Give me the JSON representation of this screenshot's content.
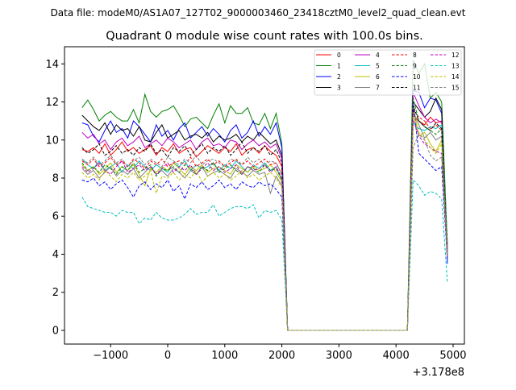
{
  "chart_data": {
    "type": "line",
    "suptitle": "Data file: modeM0/AS1A07_127T02_9000003460_23418cztM0_level2_quad_clean.evt",
    "title": "Quadrant 0 module wise count rates with 100.0s bins.",
    "xlabel": "",
    "ylabel": "",
    "x_offset_label": "+3.178e8",
    "xlim": [
      -1808,
      5198
    ],
    "ylim": [
      -0.72,
      14.9
    ],
    "xticks": [
      -1000,
      0,
      1000,
      2000,
      3000,
      4000,
      5000
    ],
    "xtick_labels": [
      "−1000",
      "0",
      "1000",
      "2000",
      "3000",
      "4000",
      "5000"
    ],
    "yticks": [
      0,
      2,
      4,
      6,
      8,
      10,
      12,
      14
    ],
    "ytick_labels": [
      "0",
      "2",
      "4",
      "6",
      "8",
      "10",
      "12",
      "14"
    ],
    "grid": false,
    "legend_placement": "top-right",
    "bin_size": 100,
    "x_start": -1500,
    "zero_gap_x": [
      2100,
      4200
    ],
    "after_start": 4300,
    "series": [
      {
        "name": "0",
        "color": "#ff0000",
        "dashed": false,
        "before": [
          9.5,
          9.4,
          9.6,
          9.3,
          9.8,
          9.2,
          9.5,
          9.9,
          9.4,
          9.6,
          9.3,
          9.5,
          9.7,
          9.2,
          9.6,
          9.4,
          9.8,
          9.3,
          9.5,
          9.6,
          9.1,
          9.4,
          9.7,
          9.5,
          9.3,
          9.6,
          9.4,
          9.8,
          9.2,
          9.5,
          9.6,
          9.3,
          9.7,
          9.4,
          9.2,
          8.6
        ],
        "after": [
          11.3,
          11.0,
          10.8,
          11.2,
          10.9,
          11.0,
          4.2
        ]
      },
      {
        "name": "1",
        "color": "#008000",
        "dashed": false,
        "before": [
          11.7,
          12.1,
          11.6,
          11.0,
          11.3,
          11.5,
          11.2,
          11.0,
          11.0,
          11.6,
          10.9,
          12.4,
          11.5,
          11.2,
          11.5,
          11.6,
          11.8,
          11.3,
          10.7,
          11.1,
          11.2,
          10.9,
          10.6,
          11.3,
          11.9,
          10.9,
          11.8,
          11.4,
          11.4,
          11.7,
          10.9,
          10.8,
          11.4,
          10.6,
          11.4,
          9.8
        ],
        "after": [
          14.2,
          13.5,
          14.0,
          12.2,
          12.5,
          12.0,
          4.5
        ]
      },
      {
        "name": "2",
        "color": "#0000ff",
        "dashed": false,
        "before": [
          10.9,
          10.8,
          10.2,
          9.9,
          10.5,
          11.0,
          10.4,
          10.6,
          10.1,
          11.0,
          10.7,
          10.3,
          9.9,
          10.8,
          10.2,
          10.5,
          10.0,
          10.6,
          10.9,
          10.1,
          10.4,
          10.7,
          10.2,
          10.6,
          10.3,
          9.9,
          10.5,
          10.8,
          10.1,
          10.4,
          11.0,
          10.2,
          10.7,
          10.3,
          10.9,
          9.6
        ],
        "after": [
          12.6,
          12.5,
          11.7,
          12.2,
          12.1,
          11.4,
          3.5
        ]
      },
      {
        "name": "3",
        "color": "#000000",
        "dashed": false,
        "before": [
          11.3,
          11.0,
          10.7,
          10.5,
          10.9,
          10.3,
          10.8,
          10.5,
          10.6,
          10.2,
          10.7,
          10.0,
          9.9,
          10.4,
          10.8,
          10.1,
          10.3,
          10.5,
          10.0,
          10.2,
          10.3,
          10.1,
          10.4,
          9.9,
          10.2,
          10.0,
          10.1,
          10.3,
          9.9,
          10.2,
          10.0,
          10.4,
          10.1,
          9.8,
          10.0,
          9.2
        ],
        "after": [
          12.0,
          11.6,
          11.2,
          11.5,
          12.2,
          11.6,
          4.0
        ]
      },
      {
        "name": "4",
        "color": "#bf00bf",
        "dashed": false,
        "before": [
          10.4,
          10.1,
          10.3,
          9.8,
          10.0,
          9.5,
          9.9,
          10.1,
          9.7,
          9.9,
          10.2,
          9.6,
          9.8,
          10.0,
          9.7,
          10.1,
          9.9,
          9.6,
          9.8,
          10.0,
          9.5,
          9.9,
          10.1,
          9.7,
          9.8,
          9.6,
          10.0,
          9.9,
          9.5,
          9.8,
          10.0,
          9.7,
          9.9,
          9.6,
          9.8,
          9.0
        ],
        "after": [
          12.5,
          11.8,
          11.2,
          10.9,
          11.1,
          10.9,
          4.3
        ]
      },
      {
        "name": "5",
        "color": "#00bfbf",
        "dashed": false,
        "before": [
          9.0,
          8.7,
          8.5,
          8.9,
          8.4,
          8.6,
          8.8,
          8.3,
          8.7,
          8.5,
          8.9,
          8.6,
          8.4,
          8.7,
          8.5,
          8.3,
          8.8,
          8.6,
          8.9,
          8.4,
          8.7,
          8.5,
          8.6,
          8.8,
          8.4,
          8.7,
          8.5,
          8.9,
          8.6,
          8.3,
          8.7,
          8.5,
          8.8,
          8.4,
          8.6,
          7.9
        ],
        "after": [
          10.9,
          10.6,
          10.5,
          10.7,
          10.6,
          10.8,
          4.6
        ]
      },
      {
        "name": "6",
        "color": "#bfbf00",
        "dashed": false,
        "before": [
          8.7,
          8.4,
          8.6,
          8.2,
          8.5,
          8.8,
          8.3,
          8.6,
          8.4,
          8.7,
          8.2,
          7.6,
          8.5,
          8.3,
          8.6,
          8.4,
          8.8,
          8.5,
          8.2,
          8.6,
          8.4,
          8.7,
          8.3,
          8.5,
          8.6,
          8.4,
          8.2,
          8.7,
          8.5,
          8.3,
          8.6,
          8.4,
          8.5,
          8.7,
          8.3,
          7.8
        ],
        "after": [
          11.8,
          10.2,
          10.4,
          9.8,
          9.4,
          10.0,
          4.1
        ]
      },
      {
        "name": "7",
        "color": "#808080",
        "dashed": false,
        "before": [
          8.5,
          8.2,
          8.4,
          8.0,
          8.3,
          8.6,
          8.1,
          8.4,
          8.2,
          8.5,
          8.0,
          8.3,
          8.6,
          8.2,
          8.4,
          8.1,
          8.5,
          8.3,
          8.0,
          8.4,
          8.2,
          8.6,
          8.1,
          8.3,
          8.4,
          8.2,
          8.0,
          8.5,
          8.3,
          8.1,
          8.4,
          8.2,
          8.3,
          7.2,
          8.1,
          7.6
        ],
        "after": [
          11.5,
          10.8,
          10.1,
          10.4,
          10.0,
          10.2,
          3.9
        ]
      },
      {
        "name": "8",
        "color": "#ff0000",
        "dashed": true,
        "before": [
          8.9,
          8.7,
          9.0,
          8.6,
          8.8,
          9.1,
          8.7,
          8.9,
          8.6,
          9.0,
          8.8,
          8.5,
          8.9,
          8.7,
          9.0,
          8.6,
          8.8,
          8.9,
          8.7,
          9.1,
          8.6,
          8.8,
          9.0,
          8.7,
          8.9,
          8.6,
          8.8,
          9.0,
          8.7,
          8.9,
          8.6,
          8.8,
          9.0,
          8.7,
          8.8,
          8.2
        ],
        "after": [
          11.6,
          11.2,
          11.0,
          10.6,
          10.8,
          10.5,
          4.4
        ]
      },
      {
        "name": "9",
        "color": "#008000",
        "dashed": true,
        "before": [
          8.8,
          8.4,
          8.6,
          8.3,
          8.7,
          8.5,
          8.2,
          8.6,
          8.4,
          8.8,
          8.3,
          8.5,
          8.7,
          8.1,
          8.5,
          8.4,
          8.6,
          8.3,
          8.7,
          8.5,
          8.2,
          8.6,
          8.4,
          8.8,
          8.3,
          8.5,
          8.7,
          8.4,
          8.2,
          8.6,
          8.5,
          8.3,
          8.7,
          8.4,
          8.5,
          7.9
        ],
        "after": [
          12.2,
          11.0,
          10.7,
          10.5,
          10.3,
          10.6,
          4.0
        ]
      },
      {
        "name": "10",
        "color": "#0000ff",
        "dashed": true,
        "before": [
          7.9,
          7.8,
          8.0,
          7.6,
          7.8,
          7.4,
          7.7,
          7.9,
          7.5,
          7.0,
          7.6,
          7.8,
          7.4,
          7.7,
          7.5,
          7.9,
          7.3,
          7.6,
          6.9,
          7.7,
          7.5,
          7.8,
          7.4,
          7.6,
          7.9,
          7.5,
          7.7,
          7.4,
          7.8,
          7.6,
          7.5,
          7.8,
          7.6,
          7.7,
          7.4,
          7.0
        ],
        "after": [
          12.0,
          9.3,
          9.0,
          8.7,
          8.4,
          8.6,
          3.7
        ]
      },
      {
        "name": "11",
        "color": "#000000",
        "dashed": true,
        "before": [
          9.6,
          9.3,
          9.5,
          9.8,
          9.2,
          9.4,
          9.7,
          9.3,
          9.5,
          9.2,
          9.6,
          9.4,
          9.8,
          9.3,
          9.5,
          9.1,
          9.6,
          9.4,
          9.7,
          9.2,
          9.5,
          9.8,
          9.3,
          9.6,
          9.4,
          9.7,
          9.2,
          9.5,
          9.9,
          9.3,
          9.6,
          9.4,
          9.7,
          9.2,
          9.5,
          8.8
        ],
        "after": [
          11.8,
          11.0,
          10.7,
          10.5,
          10.9,
          10.6,
          4.1
        ]
      },
      {
        "name": "12",
        "color": "#bf00bf",
        "dashed": true,
        "before": [
          8.6,
          8.3,
          8.5,
          8.8,
          8.4,
          8.2,
          8.6,
          8.9,
          8.3,
          8.5,
          8.7,
          8.4,
          8.6,
          8.2,
          8.5,
          8.8,
          8.3,
          8.6,
          8.4,
          8.7,
          8.2,
          8.5,
          8.8,
          8.4,
          8.6,
          8.3,
          8.5,
          8.7,
          8.2,
          8.6,
          8.4,
          8.5,
          8.7,
          8.3,
          8.6,
          8.0
        ],
        "after": [
          11.1,
          10.2,
          9.8,
          9.6,
          9.4,
          9.3,
          3.8
        ]
      },
      {
        "name": "13",
        "color": "#00bfbf",
        "dashed": true,
        "before": [
          7.0,
          6.5,
          6.4,
          6.3,
          6.2,
          6.2,
          6.0,
          6.3,
          6.2,
          6.2,
          5.6,
          5.9,
          5.8,
          6.2,
          5.9,
          5.8,
          5.8,
          5.9,
          6.1,
          6.4,
          6.1,
          6.2,
          6.2,
          6.6,
          6.0,
          6.2,
          6.4,
          6.5,
          6.5,
          6.4,
          6.6,
          5.9,
          6.3,
          6.2,
          6.3,
          5.8
        ],
        "after": [
          7.9,
          7.6,
          7.1,
          7.3,
          7.2,
          6.9,
          2.5
        ]
      },
      {
        "name": "14",
        "color": "#bfbf00",
        "dashed": true,
        "before": [
          8.3,
          8.0,
          8.2,
          7.9,
          8.4,
          8.1,
          7.8,
          8.2,
          8.0,
          8.3,
          7.9,
          8.1,
          8.4,
          7.2,
          8.1,
          8.0,
          8.3,
          7.9,
          8.2,
          8.0,
          8.4,
          7.8,
          8.1,
          8.3,
          8.0,
          8.2,
          7.9,
          8.1,
          8.4,
          8.0,
          8.2,
          7.9,
          8.1,
          8.3,
          8.0,
          7.5
        ],
        "after": [
          11.3,
          10.4,
          10.0,
          9.6,
          9.3,
          9.8,
          3.9
        ]
      },
      {
        "name": "15",
        "color": "#808080",
        "dashed": true,
        "before": [
          9.0,
          8.8,
          9.1,
          8.7,
          8.9,
          9.2,
          8.8,
          9.0,
          8.6,
          8.9,
          9.1,
          8.7,
          9.0,
          8.8,
          8.6,
          9.1,
          8.9,
          8.7,
          9.0,
          8.8,
          9.2,
          8.7,
          8.9,
          9.0,
          8.8,
          8.6,
          9.0,
          8.9,
          8.7,
          9.1,
          8.8,
          9.0,
          8.7,
          8.9,
          8.8,
          8.2
        ],
        "after": [
          9.6,
          10.3,
          10.0,
          9.2,
          8.9,
          9.1,
          4.0
        ]
      }
    ]
  }
}
